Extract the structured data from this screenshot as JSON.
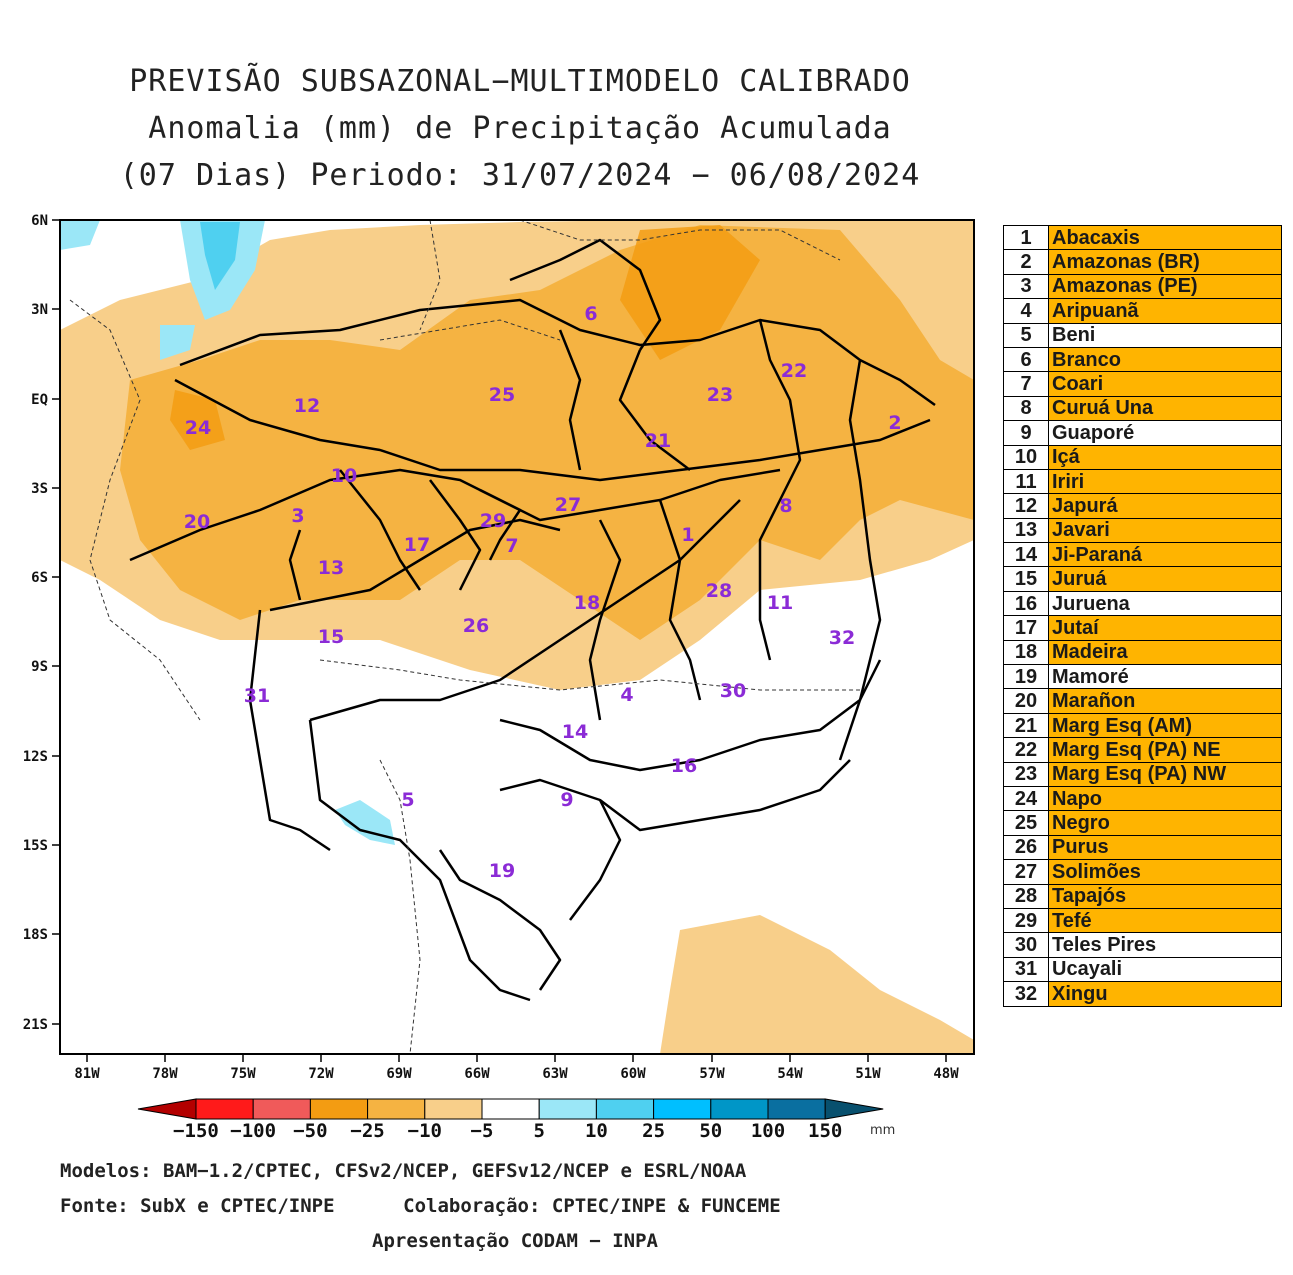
{
  "title": {
    "line1": "PREVISÃO SUBSAZONAL−MULTIMODELO CALIBRADO",
    "line2": "Anomalia (mm) de Precipitação Acumulada",
    "line3": "(07 Dias) Periodo: 31/07/2024 − 06/08/2024"
  },
  "axes": {
    "lat_labels": [
      "6N",
      "3N",
      "EQ",
      "3S",
      "6S",
      "9S",
      "12S",
      "15S",
      "18S",
      "21S"
    ],
    "lon_labels": [
      "81W",
      "78W",
      "75W",
      "72W",
      "69W",
      "66W",
      "63W",
      "60W",
      "57W",
      "54W",
      "51W",
      "48W"
    ]
  },
  "basin_labels": [
    "1",
    "2",
    "3",
    "4",
    "5",
    "6",
    "7",
    "8",
    "9",
    "10",
    "11",
    "12",
    "13",
    "14",
    "15",
    "16",
    "17",
    "18",
    "19",
    "20",
    "21",
    "22",
    "23",
    "24",
    "25",
    "26",
    "27",
    "28",
    "29",
    "30",
    "31",
    "32"
  ],
  "colorbar": {
    "labels": [
      "−150",
      "−100",
      "−50",
      "−25",
      "−10",
      "−5",
      "5",
      "10",
      "25",
      "50",
      "100",
      "150"
    ],
    "unit": "mm",
    "colors": [
      "#b30000",
      "#ff1a1a",
      "#f05a5a",
      "#f39c12",
      "#f5b342",
      "#f8cf8a",
      "#ffffff",
      "#9be7f7",
      "#4fd0f0",
      "#00bfff",
      "#0096c7",
      "#0a6fa0",
      "#08506e"
    ]
  },
  "legend": {
    "rows": [
      {
        "num": "1",
        "name": "Abacaxis",
        "color": "#ffb400"
      },
      {
        "num": "2",
        "name": "Amazonas (BR)",
        "color": "#ffb400"
      },
      {
        "num": "3",
        "name": "Amazonas (PE)",
        "color": "#ffb400"
      },
      {
        "num": "4",
        "name": "Aripuanã",
        "color": "#ffb400"
      },
      {
        "num": "5",
        "name": "Beni",
        "color": "#ffffff"
      },
      {
        "num": "6",
        "name": "Branco",
        "color": "#ffb400"
      },
      {
        "num": "7",
        "name": "Coari",
        "color": "#ffb400"
      },
      {
        "num": "8",
        "name": "Curuá Una",
        "color": "#ffb400"
      },
      {
        "num": "9",
        "name": "Guaporé",
        "color": "#ffffff"
      },
      {
        "num": "10",
        "name": "Içá",
        "color": "#ffb400"
      },
      {
        "num": "11",
        "name": "Iriri",
        "color": "#ffb400"
      },
      {
        "num": "12",
        "name": "Japurá",
        "color": "#ffb400"
      },
      {
        "num": "13",
        "name": "Javari",
        "color": "#ffb400"
      },
      {
        "num": "14",
        "name": "Ji-Paraná",
        "color": "#ffb400"
      },
      {
        "num": "15",
        "name": "Juruá",
        "color": "#ffb400"
      },
      {
        "num": "16",
        "name": "Juruena",
        "color": "#ffffff"
      },
      {
        "num": "17",
        "name": "Jutaí",
        "color": "#ffb400"
      },
      {
        "num": "18",
        "name": "Madeira",
        "color": "#ffb400"
      },
      {
        "num": "19",
        "name": "Mamoré",
        "color": "#ffffff"
      },
      {
        "num": "20",
        "name": "Marañon",
        "color": "#ffb400"
      },
      {
        "num": "21",
        "name": "Marg Esq (AM)",
        "color": "#ffb400"
      },
      {
        "num": "22",
        "name": "Marg Esq (PA) NE",
        "color": "#ffb400"
      },
      {
        "num": "23",
        "name": "Marg Esq (PA) NW",
        "color": "#ffb400"
      },
      {
        "num": "24",
        "name": "Napo",
        "color": "#ffb400"
      },
      {
        "num": "25",
        "name": "Negro",
        "color": "#ffb400"
      },
      {
        "num": "26",
        "name": "Purus",
        "color": "#ffb400"
      },
      {
        "num": "27",
        "name": "Solimões",
        "color": "#ffb400"
      },
      {
        "num": "28",
        "name": "Tapajós",
        "color": "#ffb400"
      },
      {
        "num": "29",
        "name": "Tefé",
        "color": "#ffb400"
      },
      {
        "num": "30",
        "name": "Teles Pires",
        "color": "#ffffff"
      },
      {
        "num": "31",
        "name": "Ucayali",
        "color": "#ffffff"
      },
      {
        "num": "32",
        "name": "Xingu",
        "color": "#ffb400"
      }
    ]
  },
  "footer": {
    "models": "Modelos: BAM−1.2/CPTEC, CFSv2/NCEP, GEFSv12/NCEP e ESRL/NOAA",
    "source": "Fonte: SubX e CPTEC/INPE      Colaboração: CPTEC/INPE & FUNCEME",
    "presentation": "Apresentação CODAM − INPA"
  }
}
